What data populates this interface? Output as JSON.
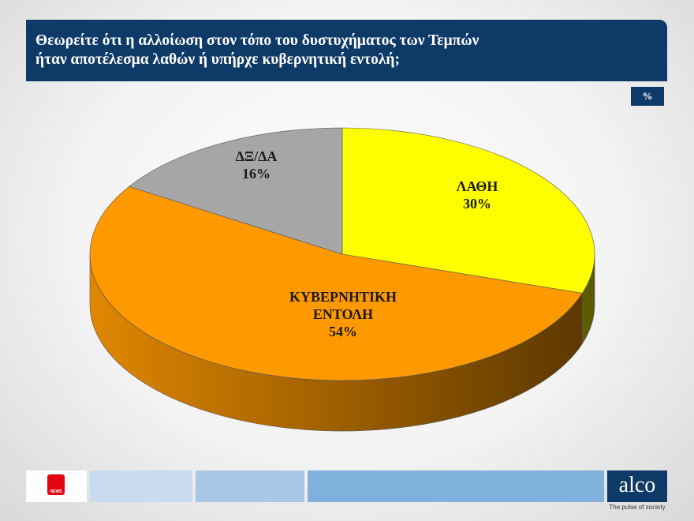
{
  "chart_data": {
    "type": "pie",
    "title": "Θεωρείτε ότι η αλλοίωση στον τόπο του δυστυχήματος των Τεμπών\nήταν αποτέλεσμα λαθών ή υπήρχε κυβερνητική εντολή;",
    "unit": "%",
    "categories": [
      "ΛΑΘΗ",
      "ΚΥΒΕΡΝΗΤΙΚΗ ΕΝΤΟΛΗ",
      "ΔΞ/ΔΑ"
    ],
    "values": [
      30,
      54,
      16
    ],
    "value_labels": [
      "30%",
      "54%",
      "16%"
    ],
    "colors": [
      "#ffff00",
      "#ff9900",
      "#a6a6a6"
    ]
  },
  "branding": {
    "news": "NEWS",
    "logo": "alco",
    "tagline": "The pulse of society"
  }
}
